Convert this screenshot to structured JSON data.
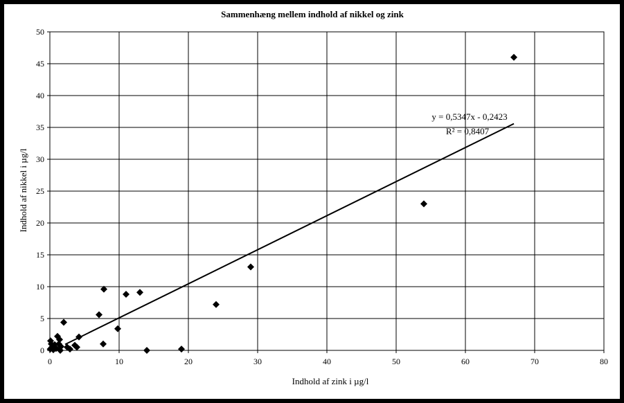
{
  "chart_data": {
    "type": "scatter",
    "title": "Sammenhæng mellem indhold af nikkel og zink",
    "xlabel": "Indhold af zink i µg/l",
    "ylabel": "Indhold af nikkel i µg/l",
    "xlim": [
      0,
      80
    ],
    "ylim": [
      0,
      50
    ],
    "xticks": [
      0,
      10,
      20,
      30,
      40,
      50,
      60,
      70,
      80
    ],
    "yticks": [
      0,
      5,
      10,
      15,
      20,
      25,
      30,
      35,
      40,
      45,
      50
    ],
    "grid": true,
    "legend": "none",
    "marker": "diamond",
    "marker_color": "#000000",
    "trendline": {
      "type": "linear",
      "slope": 0.5347,
      "intercept": -0.2423,
      "x_range": [
        2.2,
        67
      ],
      "equation": "y = 0,5347x - 0,2423",
      "r_squared": "R² = 0,8407"
    },
    "points": [
      {
        "x": 67,
        "y": 46
      },
      {
        "x": 54,
        "y": 23
      },
      {
        "x": 29,
        "y": 13.1
      },
      {
        "x": 24,
        "y": 7.2
      },
      {
        "x": 19,
        "y": 0.2
      },
      {
        "x": 14,
        "y": 0.0
      },
      {
        "x": 13,
        "y": 9.1
      },
      {
        "x": 11,
        "y": 8.8
      },
      {
        "x": 9.8,
        "y": 3.4
      },
      {
        "x": 7.8,
        "y": 9.6
      },
      {
        "x": 7.7,
        "y": 1.0
      },
      {
        "x": 7.1,
        "y": 5.6
      },
      {
        "x": 4.2,
        "y": 2.1
      },
      {
        "x": 3.9,
        "y": 0.5
      },
      {
        "x": 3.6,
        "y": 0.8
      },
      {
        "x": 2.9,
        "y": 0.2
      },
      {
        "x": 2.5,
        "y": 0.5
      },
      {
        "x": 2.0,
        "y": 4.4
      },
      {
        "x": 1.6,
        "y": 0.6
      },
      {
        "x": 1.5,
        "y": 0.0
      },
      {
        "x": 1.4,
        "y": 1.7
      },
      {
        "x": 1.3,
        "y": 1.0
      },
      {
        "x": 1.1,
        "y": 2.2
      },
      {
        "x": 0.9,
        "y": 0.3
      },
      {
        "x": 0.7,
        "y": 0.9
      },
      {
        "x": 0.5,
        "y": 0.1
      },
      {
        "x": 0.3,
        "y": 0.5
      },
      {
        "x": 0.2,
        "y": 1.0
      },
      {
        "x": 0.1,
        "y": 1.5
      },
      {
        "x": 0.05,
        "y": 0.2
      }
    ]
  }
}
